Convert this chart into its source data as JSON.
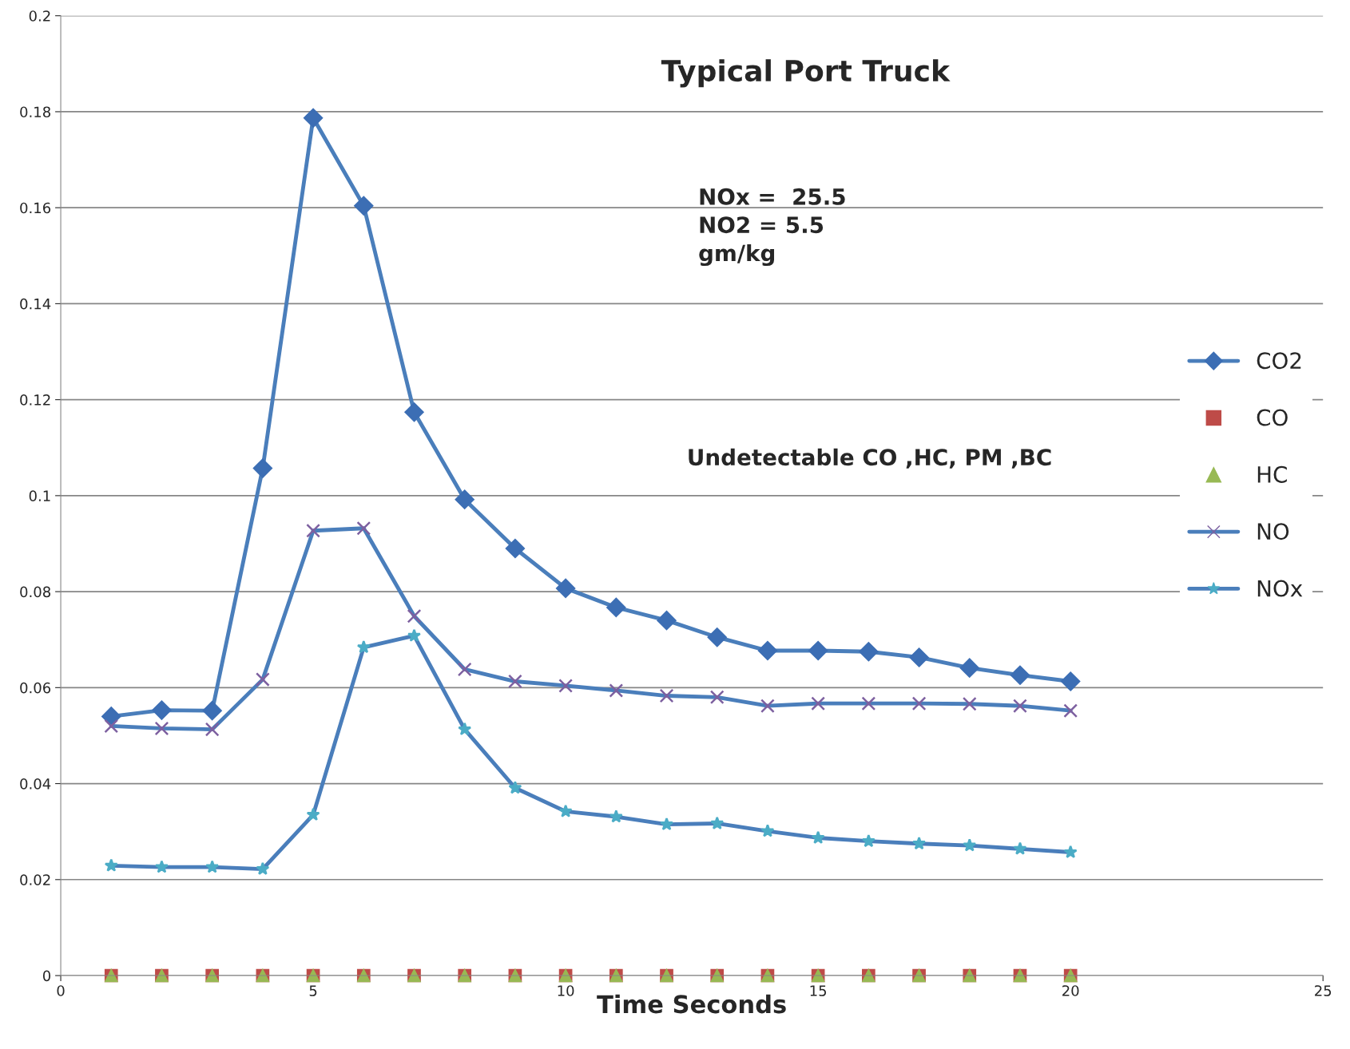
{
  "chart_data": {
    "type": "line",
    "title": "Typical Port Truck",
    "xlabel": "Time Seconds",
    "x": [
      1,
      2,
      3,
      4,
      5,
      6,
      7,
      8,
      9,
      10,
      11,
      12,
      13,
      14,
      15,
      16,
      17,
      18,
      19,
      20
    ],
    "series": [
      {
        "name": "CO2",
        "marker": "diamond",
        "color": "#3c6eb4",
        "values": [
          0.054,
          0.0553,
          0.0552,
          0.1057,
          0.1787,
          0.1604,
          0.1174,
          0.0992,
          0.089,
          0.0807,
          0.0767,
          0.074,
          0.0705,
          0.0677,
          0.0677,
          0.0675,
          0.0663,
          0.0641,
          0.0626,
          0.0613
        ]
      },
      {
        "name": "CO",
        "type": "scatter",
        "marker": "square",
        "color": "#be4b48",
        "values": [
          0,
          0,
          0,
          0,
          0,
          0,
          0,
          0,
          0,
          0,
          0,
          0,
          0,
          0,
          0,
          0,
          0,
          0,
          0,
          0
        ]
      },
      {
        "name": "HC",
        "type": "scatter",
        "marker": "triangle",
        "color": "#98b954",
        "values": [
          0,
          0,
          0,
          0,
          0,
          0,
          0,
          0,
          0,
          0,
          0,
          0,
          0,
          0,
          0,
          0,
          0,
          0,
          0,
          0
        ]
      },
      {
        "name": "NO",
        "marker": "cross",
        "color": "#7d60a0",
        "values": [
          0.052,
          0.0515,
          0.0513,
          0.0617,
          0.0927,
          0.0932,
          0.0749,
          0.0638,
          0.0613,
          0.0604,
          0.0594,
          0.0583,
          0.058,
          0.0562,
          0.0567,
          0.0567,
          0.0567,
          0.0566,
          0.0562,
          0.0552
        ]
      },
      {
        "name": "NOx",
        "marker": "star",
        "color": "#4bacc6",
        "values": [
          0.0229,
          0.0226,
          0.0226,
          0.0222,
          0.0335,
          0.0684,
          0.0708,
          0.0513,
          0.0391,
          0.0342,
          0.0331,
          0.0315,
          0.0317,
          0.0301,
          0.0287,
          0.028,
          0.0275,
          0.0271,
          0.0264,
          0.0257
        ]
      }
    ],
    "annotations": [
      "NOx =  25.5\nNO2 = 5.5\ngm/kg",
      "Undetectable CO ,HC, PM ,BC"
    ],
    "xlim": [
      0,
      25
    ],
    "xticks": [
      0,
      5,
      10,
      15,
      20,
      25
    ],
    "ylim": [
      0,
      0.2
    ],
    "yticks": [
      0,
      0.02,
      0.04,
      0.06,
      0.08,
      0.1,
      0.12,
      0.14,
      0.16,
      0.18,
      0.2
    ],
    "grid": "y",
    "legend": "right"
  }
}
